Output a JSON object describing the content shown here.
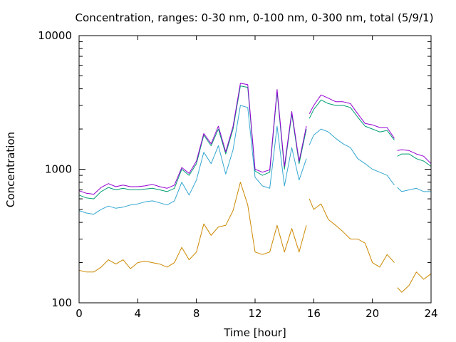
{
  "chart_data": {
    "type": "line",
    "title": "Concentration, ranges: 0-30 nm, 0-100 nm, 0-300 nm, total (5/9/1)",
    "xlabel": "Time [hour]",
    "ylabel": "Concentration",
    "xlim": [
      0,
      24
    ],
    "ylim": [
      100,
      10000
    ],
    "yscale": "log",
    "xticks": [
      0,
      4,
      8,
      12,
      16,
      20,
      24
    ],
    "xtick_labels": [
      "0",
      "4",
      "8",
      "12",
      "16",
      "20",
      "24"
    ],
    "yticks": [
      100,
      1000,
      10000
    ],
    "ytick_labels": [
      "100",
      "1000",
      "10000"
    ],
    "grid": false,
    "legend": "none",
    "series": [
      {
        "color": "#cc8800",
        "x": [
          0,
          0.5,
          1,
          1.5,
          2,
          2.5,
          3,
          3.5,
          4,
          4.5,
          5,
          5.5,
          6,
          6.5,
          7,
          7.5,
          8,
          8.5,
          9,
          9.5,
          10,
          10.5,
          11,
          11.5,
          12,
          12.5,
          13,
          13.5,
          14,
          14.5,
          15,
          15.5,
          null,
          15.7,
          16,
          16.5,
          17,
          17.5,
          18,
          18.5,
          19,
          19.5,
          20,
          20.5,
          21,
          21.5,
          null,
          21.7,
          22,
          22.5,
          23,
          23.5,
          24
        ],
        "y": [
          175,
          170,
          170,
          185,
          210,
          195,
          210,
          180,
          200,
          205,
          200,
          195,
          185,
          200,
          260,
          210,
          240,
          390,
          320,
          370,
          380,
          490,
          800,
          540,
          240,
          230,
          240,
          380,
          240,
          360,
          240,
          380,
          null,
          600,
          500,
          550,
          420,
          380,
          340,
          300,
          300,
          280,
          200,
          185,
          230,
          200,
          null,
          130,
          120,
          135,
          170,
          150,
          165
        ]
      },
      {
        "color": "#35a7d1",
        "x": [
          0,
          0.5,
          1,
          1.5,
          2,
          2.5,
          3,
          3.5,
          4,
          4.5,
          5,
          5.5,
          6,
          6.5,
          7,
          7.5,
          8,
          8.5,
          9,
          9.5,
          10,
          10.5,
          11,
          11.5,
          12,
          12.5,
          13,
          13.5,
          14,
          14.5,
          15,
          15.5,
          null,
          15.7,
          16,
          16.5,
          17,
          17.5,
          18,
          18.5,
          19,
          19.5,
          20,
          20.5,
          21,
          21.5,
          null,
          21.7,
          22,
          22.5,
          23,
          23.5,
          24
        ],
        "y": [
          490,
          470,
          460,
          500,
          530,
          510,
          520,
          540,
          550,
          570,
          580,
          560,
          540,
          580,
          800,
          640,
          830,
          1340,
          1100,
          1500,
          920,
          1400,
          3000,
          2900,
          870,
          750,
          720,
          2100,
          750,
          1450,
          830,
          1200,
          null,
          1520,
          1800,
          2000,
          1900,
          1700,
          1550,
          1450,
          1200,
          1100,
          1000,
          950,
          900,
          760,
          null,
          730,
          680,
          700,
          720,
          680,
          680
        ]
      },
      {
        "color": "#009e73",
        "x": [
          0,
          0.5,
          1,
          1.5,
          2,
          2.5,
          3,
          3.5,
          4,
          4.5,
          5,
          5.5,
          6,
          6.5,
          7,
          7.5,
          8,
          8.5,
          9,
          9.5,
          10,
          10.5,
          11,
          11.5,
          12,
          12.5,
          13,
          13.5,
          14,
          14.5,
          15,
          15.5,
          null,
          15.7,
          16,
          16.5,
          17,
          17.5,
          18,
          18.5,
          19,
          19.5,
          20,
          20.5,
          21,
          21.5,
          null,
          21.7,
          22,
          22.5,
          23,
          23.5,
          24
        ],
        "y": [
          640,
          610,
          600,
          680,
          730,
          700,
          720,
          700,
          700,
          710,
          720,
          700,
          680,
          720,
          1000,
          900,
          1100,
          1800,
          1500,
          2000,
          1300,
          2000,
          4200,
          4100,
          970,
          900,
          950,
          3800,
          1000,
          2600,
          1100,
          2000,
          null,
          2400,
          2800,
          3300,
          3100,
          3000,
          3000,
          2900,
          2450,
          2100,
          2000,
          1900,
          1950,
          1650,
          null,
          1250,
          1300,
          1300,
          1200,
          1150,
          1050
        ]
      },
      {
        "color": "#9400d3",
        "x": [
          0,
          0.5,
          1,
          1.5,
          2,
          2.5,
          3,
          3.5,
          4,
          4.5,
          5,
          5.5,
          6,
          6.5,
          7,
          7.5,
          8,
          8.5,
          9,
          9.5,
          10,
          10.5,
          11,
          11.5,
          12,
          12.5,
          13,
          13.5,
          14,
          14.5,
          15,
          15.5,
          null,
          15.7,
          16,
          16.5,
          17,
          17.5,
          18,
          18.5,
          19,
          19.5,
          20,
          20.5,
          21,
          21.5,
          null,
          21.7,
          22,
          22.5,
          23,
          23.5,
          24
        ],
        "y": [
          690,
          660,
          650,
          730,
          780,
          740,
          760,
          740,
          740,
          750,
          770,
          740,
          720,
          760,
          1030,
          930,
          1150,
          1850,
          1550,
          2100,
          1350,
          2100,
          4400,
          4300,
          1000,
          950,
          990,
          3950,
          1050,
          2700,
          1150,
          2100,
          null,
          2600,
          3000,
          3600,
          3400,
          3200,
          3200,
          3100,
          2600,
          2200,
          2150,
          2050,
          2050,
          1700,
          null,
          1380,
          1400,
          1380,
          1300,
          1250,
          1100
        ]
      }
    ]
  }
}
